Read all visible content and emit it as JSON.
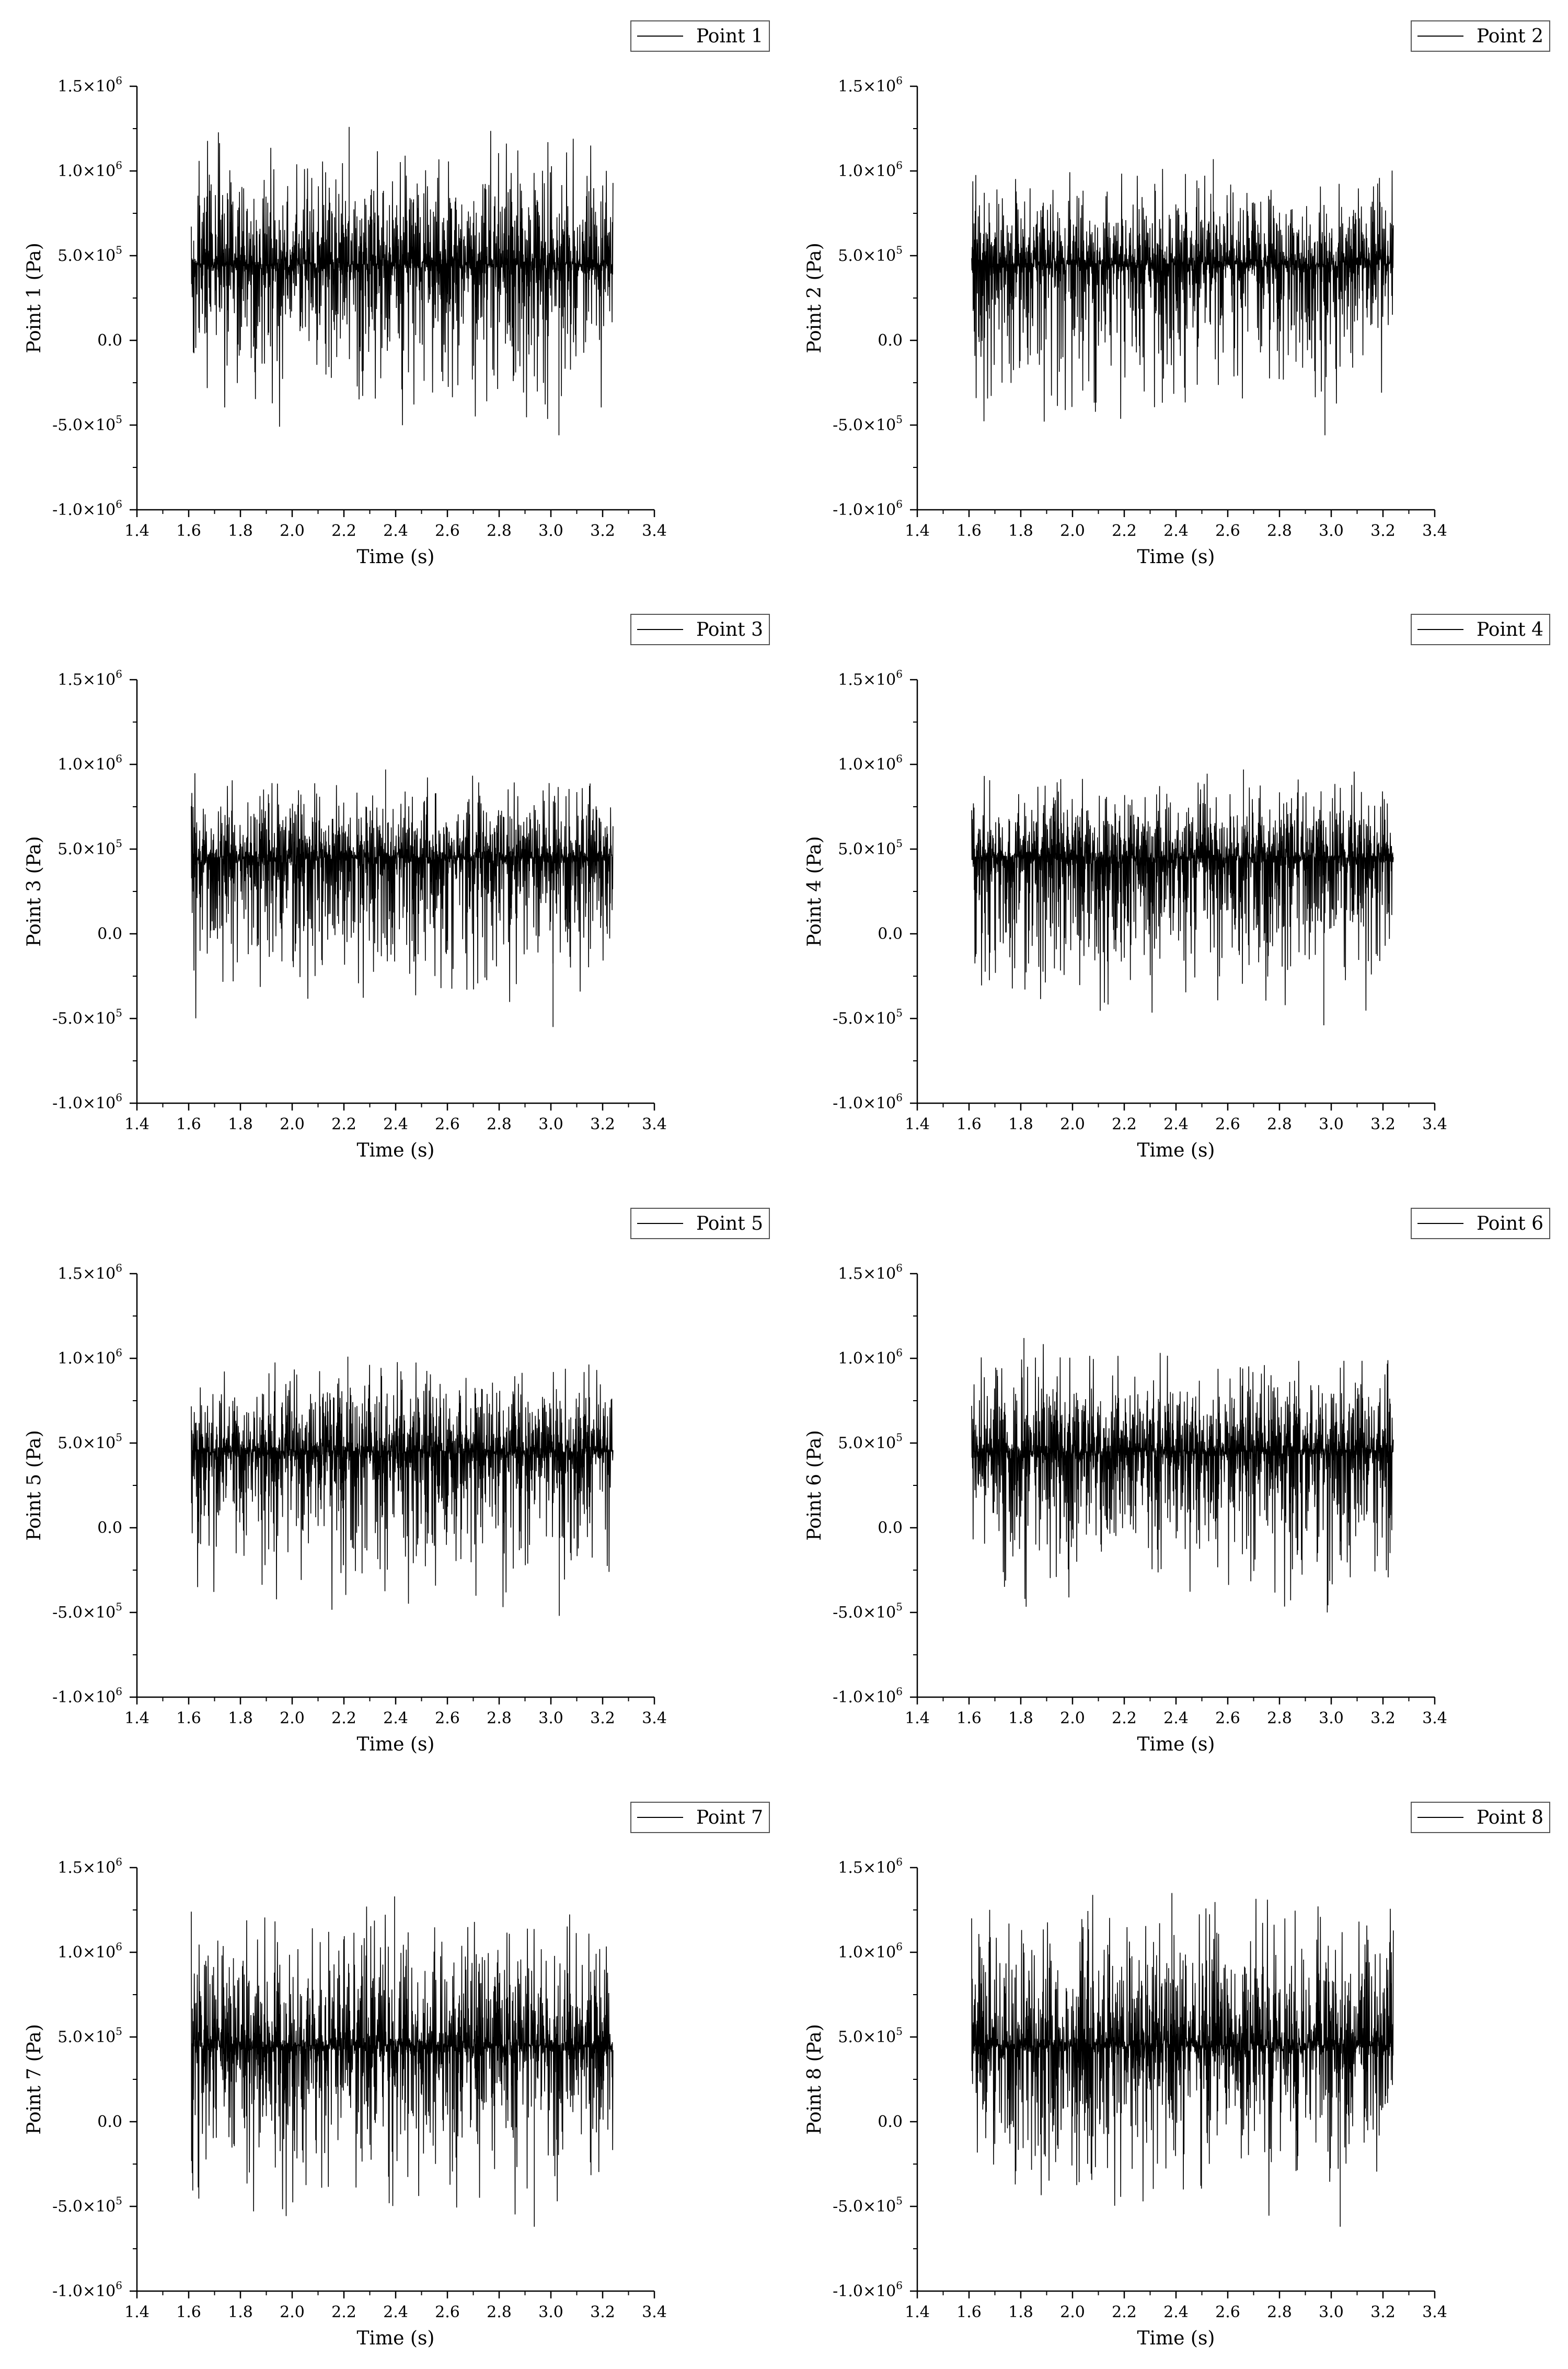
{
  "colors": {
    "series": "#000000",
    "axis": "#000000",
    "legend_border": "#555555"
  },
  "chart_data": [
    {
      "type": "line",
      "xlabel": "Time (s)",
      "ylabel": "Point 1 (Pa)",
      "xlim": [
        1.4,
        3.4
      ],
      "ylim": [
        -1000000,
        1500000
      ],
      "legend_position": "top-right",
      "xticks": [
        "1.4",
        "1.6",
        "1.8",
        "2.0",
        "2.2",
        "2.4",
        "2.6",
        "2.8",
        "3.0",
        "3.2",
        "3.4"
      ],
      "yticks": [
        {
          "base": "1.5×10",
          "exp": "6"
        },
        {
          "base": "1.0×10",
          "exp": "6"
        },
        {
          "base": "5.0×10",
          "exp": "5"
        },
        {
          "base": "0.0",
          "exp": ""
        },
        {
          "base": "-5.0×10",
          "exp": "5"
        },
        {
          "base": "-1.0×10",
          "exp": "6"
        }
      ],
      "series": [
        {
          "name": "Point 1",
          "x_range": [
            1.61,
            3.24
          ],
          "mean": 450000,
          "min": -560000,
          "max": 1260000
        }
      ]
    },
    {
      "type": "line",
      "xlabel": "Time (s)",
      "ylabel": "Point 2 (Pa)",
      "xlim": [
        1.4,
        3.4
      ],
      "ylim": [
        -1000000,
        1500000
      ],
      "legend_position": "top-right",
      "xticks": [
        "1.4",
        "1.6",
        "1.8",
        "2.0",
        "2.2",
        "2.4",
        "2.6",
        "2.8",
        "3.0",
        "3.2",
        "3.4"
      ],
      "yticks": [
        {
          "base": "1.5×10",
          "exp": "6"
        },
        {
          "base": "1.0×10",
          "exp": "6"
        },
        {
          "base": "5.0×10",
          "exp": "5"
        },
        {
          "base": "0.0",
          "exp": ""
        },
        {
          "base": "-5.0×10",
          "exp": "5"
        },
        {
          "base": "-1.0×10",
          "exp": "6"
        }
      ],
      "series": [
        {
          "name": "Point 2",
          "x_range": [
            1.61,
            3.24
          ],
          "mean": 450000,
          "min": -560000,
          "max": 1070000
        }
      ]
    },
    {
      "type": "line",
      "xlabel": "Time (s)",
      "ylabel": "Point 3 (Pa)",
      "xlim": [
        1.4,
        3.4
      ],
      "ylim": [
        -1000000,
        1500000
      ],
      "legend_position": "top-right",
      "xticks": [
        "1.4",
        "1.6",
        "1.8",
        "2.0",
        "2.2",
        "2.4",
        "2.6",
        "2.8",
        "3.0",
        "3.2",
        "3.4"
      ],
      "yticks": [
        {
          "base": "1.5×10",
          "exp": "6"
        },
        {
          "base": "1.0×10",
          "exp": "6"
        },
        {
          "base": "5.0×10",
          "exp": "5"
        },
        {
          "base": "0.0",
          "exp": ""
        },
        {
          "base": "-5.0×10",
          "exp": "5"
        },
        {
          "base": "-1.0×10",
          "exp": "6"
        }
      ],
      "series": [
        {
          "name": "Point 3",
          "x_range": [
            1.61,
            3.24
          ],
          "mean": 450000,
          "min": -550000,
          "max": 970000
        }
      ]
    },
    {
      "type": "line",
      "xlabel": "Time (s)",
      "ylabel": "Point 4 (Pa)",
      "xlim": [
        1.4,
        3.4
      ],
      "ylim": [
        -1000000,
        1500000
      ],
      "legend_position": "top-right",
      "xticks": [
        "1.4",
        "1.6",
        "1.8",
        "2.0",
        "2.2",
        "2.4",
        "2.6",
        "2.8",
        "3.0",
        "3.2",
        "3.4"
      ],
      "yticks": [
        {
          "base": "1.5×10",
          "exp": "6"
        },
        {
          "base": "1.0×10",
          "exp": "6"
        },
        {
          "base": "5.0×10",
          "exp": "5"
        },
        {
          "base": "0.0",
          "exp": ""
        },
        {
          "base": "-5.0×10",
          "exp": "5"
        },
        {
          "base": "-1.0×10",
          "exp": "6"
        }
      ],
      "series": [
        {
          "name": "Point 4",
          "x_range": [
            1.61,
            3.24
          ],
          "mean": 450000,
          "min": -540000,
          "max": 970000
        }
      ]
    },
    {
      "type": "line",
      "xlabel": "Time (s)",
      "ylabel": "Point 5 (Pa)",
      "xlim": [
        1.4,
        3.4
      ],
      "ylim": [
        -1000000,
        1500000
      ],
      "legend_position": "top-right",
      "xticks": [
        "1.4",
        "1.6",
        "1.8",
        "2.0",
        "2.2",
        "2.4",
        "2.6",
        "2.8",
        "3.0",
        "3.2",
        "3.4"
      ],
      "yticks": [
        {
          "base": "1.5×10",
          "exp": "6"
        },
        {
          "base": "1.0×10",
          "exp": "6"
        },
        {
          "base": "5.0×10",
          "exp": "5"
        },
        {
          "base": "0.0",
          "exp": ""
        },
        {
          "base": "-5.0×10",
          "exp": "5"
        },
        {
          "base": "-1.0×10",
          "exp": "6"
        }
      ],
      "series": [
        {
          "name": "Point 5",
          "x_range": [
            1.61,
            3.24
          ],
          "mean": 450000,
          "min": -520000,
          "max": 1010000
        }
      ]
    },
    {
      "type": "line",
      "xlabel": "Time (s)",
      "ylabel": "Point 6 (Pa)",
      "xlim": [
        1.4,
        3.4
      ],
      "ylim": [
        -1000000,
        1500000
      ],
      "legend_position": "top-right",
      "xticks": [
        "1.4",
        "1.6",
        "1.8",
        "2.0",
        "2.2",
        "2.4",
        "2.6",
        "2.8",
        "3.0",
        "3.2",
        "3.4"
      ],
      "yticks": [
        {
          "base": "1.5×10",
          "exp": "6"
        },
        {
          "base": "1.0×10",
          "exp": "6"
        },
        {
          "base": "5.0×10",
          "exp": "5"
        },
        {
          "base": "0.0",
          "exp": ""
        },
        {
          "base": "-5.0×10",
          "exp": "5"
        },
        {
          "base": "-1.0×10",
          "exp": "6"
        }
      ],
      "series": [
        {
          "name": "Point 6",
          "x_range": [
            1.61,
            3.24
          ],
          "mean": 450000,
          "min": -500000,
          "max": 1120000
        }
      ]
    },
    {
      "type": "line",
      "xlabel": "Time (s)",
      "ylabel": "Point 7 (Pa)",
      "xlim": [
        1.4,
        3.4
      ],
      "ylim": [
        -1000000,
        1500000
      ],
      "legend_position": "top-right",
      "xticks": [
        "1.4",
        "1.6",
        "1.8",
        "2.0",
        "2.2",
        "2.4",
        "2.6",
        "2.8",
        "3.0",
        "3.2",
        "3.4"
      ],
      "yticks": [
        {
          "base": "1.5×10",
          "exp": "6"
        },
        {
          "base": "1.0×10",
          "exp": "6"
        },
        {
          "base": "5.0×10",
          "exp": "5"
        },
        {
          "base": "0.0",
          "exp": ""
        },
        {
          "base": "-5.0×10",
          "exp": "5"
        },
        {
          "base": "-1.0×10",
          "exp": "6"
        }
      ],
      "series": [
        {
          "name": "Point 7",
          "x_range": [
            1.61,
            3.24
          ],
          "mean": 450000,
          "min": -620000,
          "max": 1330000
        }
      ]
    },
    {
      "type": "line",
      "xlabel": "Time (s)",
      "ylabel": "Point 8 (Pa)",
      "xlim": [
        1.4,
        3.4
      ],
      "ylim": [
        -1000000,
        1500000
      ],
      "legend_position": "top-right",
      "xticks": [
        "1.4",
        "1.6",
        "1.8",
        "2.0",
        "2.2",
        "2.4",
        "2.6",
        "2.8",
        "3.0",
        "3.2",
        "3.4"
      ],
      "yticks": [
        {
          "base": "1.5×10",
          "exp": "6"
        },
        {
          "base": "1.0×10",
          "exp": "6"
        },
        {
          "base": "5.0×10",
          "exp": "5"
        },
        {
          "base": "0.0",
          "exp": ""
        },
        {
          "base": "-5.0×10",
          "exp": "5"
        },
        {
          "base": "-1.0×10",
          "exp": "6"
        }
      ],
      "series": [
        {
          "name": "Point 8",
          "x_range": [
            1.61,
            3.24
          ],
          "mean": 450000,
          "min": -620000,
          "max": 1350000
        }
      ]
    }
  ]
}
